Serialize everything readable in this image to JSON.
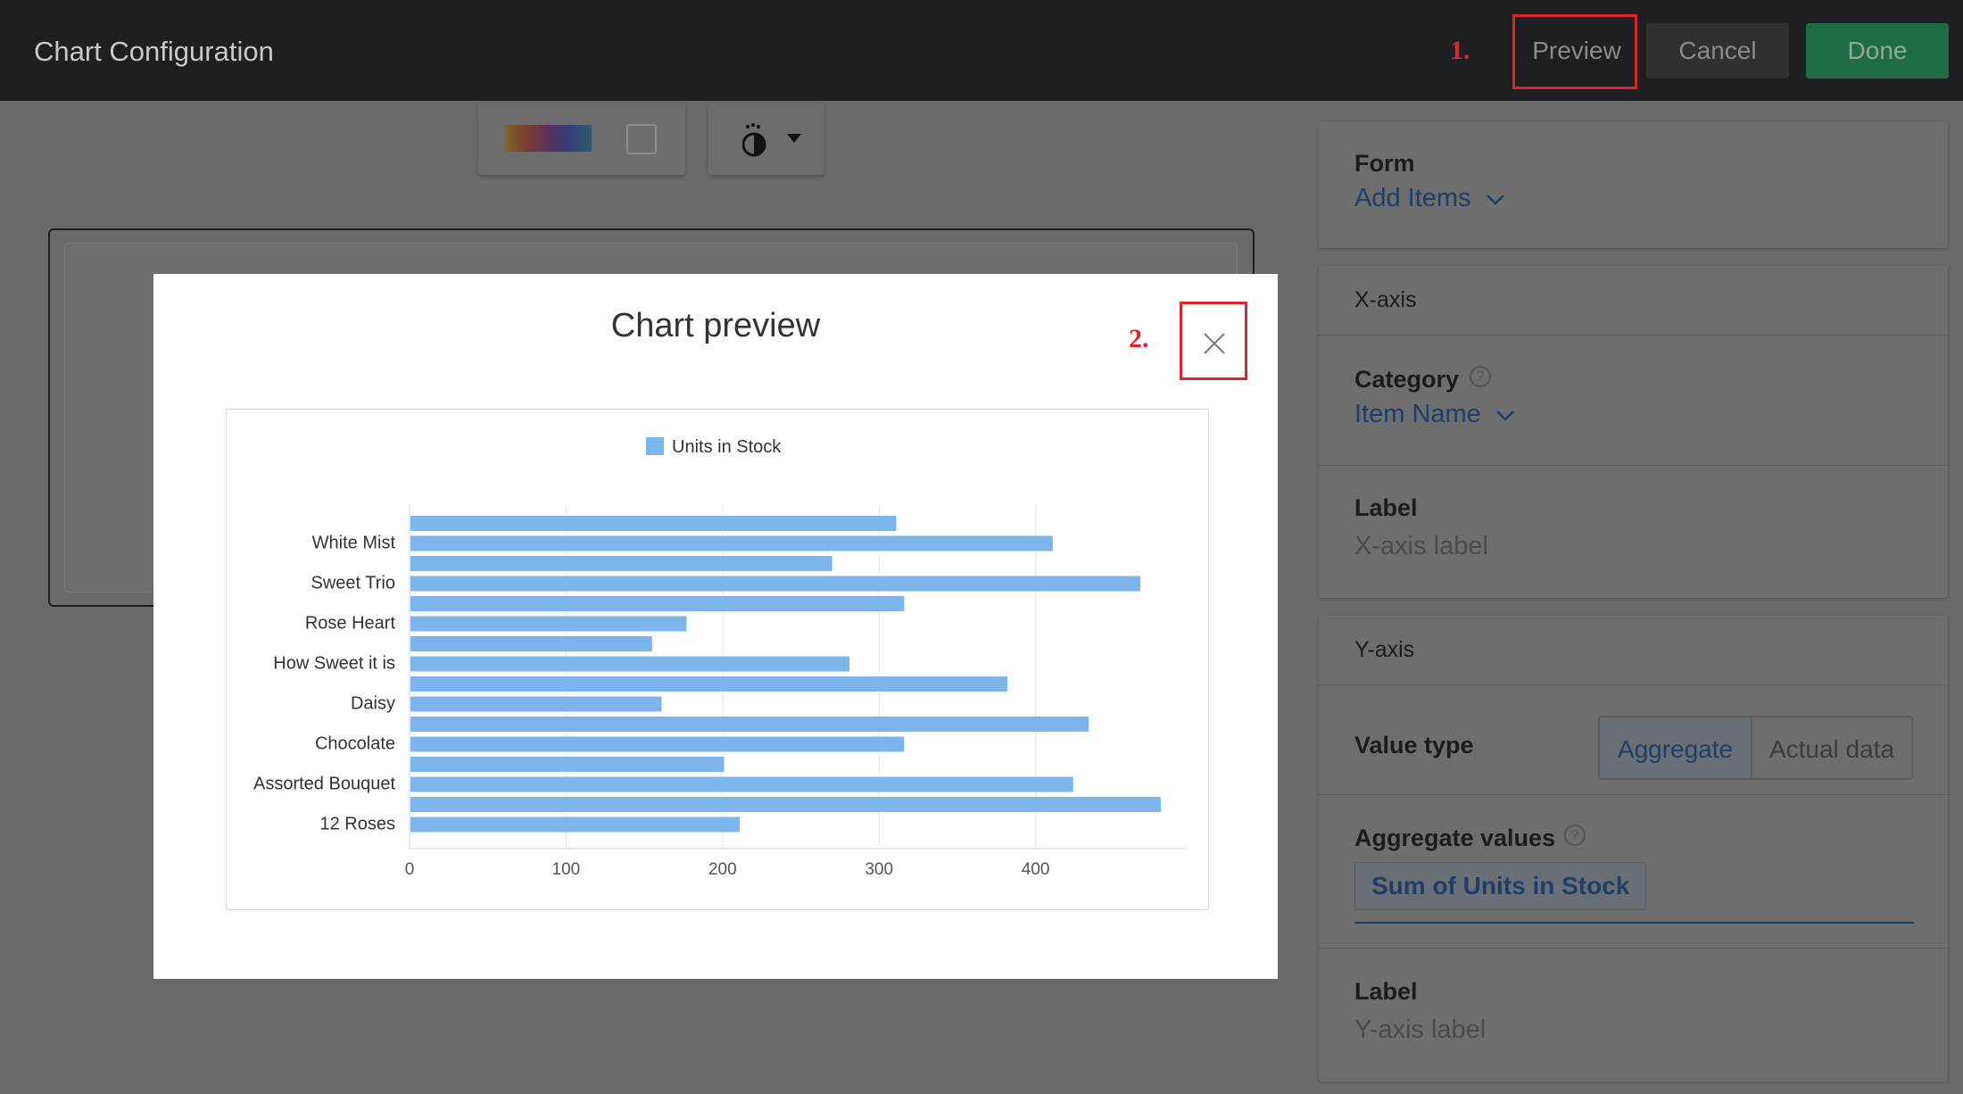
{
  "header": {
    "title": "Chart Configuration",
    "preview_label": "Preview",
    "cancel_label": "Cancel",
    "done_label": "Done"
  },
  "annotations": {
    "step1": "1.",
    "step2": "2."
  },
  "toolbar": {
    "palette_icon": "color-palette-icon",
    "theme_icon": "theme-icon"
  },
  "panel": {
    "form": {
      "title": "Form",
      "add_items": "Add Items"
    },
    "x_axis": {
      "title": "X-axis",
      "category_label": "Category",
      "category_value": "Item Name",
      "label_title": "Label",
      "label_placeholder": "X-axis label"
    },
    "y_axis": {
      "title": "Y-axis",
      "value_type_label": "Value type",
      "value_type_options": [
        "Aggregate",
        "Actual data"
      ],
      "value_type_selected": "Aggregate",
      "aggregate_label": "Aggregate values",
      "aggregate_value": "Sum of Units in Stock",
      "label_title": "Label",
      "label_placeholder": "Y-axis label"
    }
  },
  "modal": {
    "title": "Chart preview"
  },
  "chart_data": {
    "type": "bar",
    "orientation": "horizontal",
    "legend": "top",
    "grid": true,
    "series": [
      {
        "name": "Units in Stock",
        "color": "#7cb5ec"
      }
    ],
    "categories": [
      "12 Roses",
      "",
      "Assorted Bouquet",
      "",
      "Chocolate",
      "",
      "Daisy",
      "",
      "How Sweet it is",
      "",
      "Rose Heart",
      "",
      "Sweet Trio",
      "",
      "White Mist",
      ""
    ],
    "values": [
      211,
      480,
      424,
      201,
      316,
      434,
      161,
      382,
      281,
      155,
      177,
      316,
      467,
      270,
      411,
      311
    ],
    "xticks": [
      0,
      100,
      200,
      300,
      400
    ],
    "xlim": [
      0,
      496
    ]
  }
}
